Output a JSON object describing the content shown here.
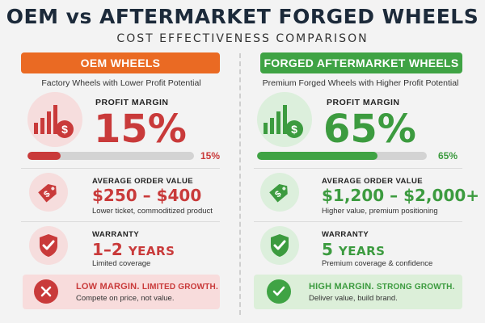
{
  "header": {
    "title": "OEM vs AFTERMARKET FORGED WHEELS",
    "subtitle": "COST EFFECTIVENESS COMPARISON"
  },
  "colors": {
    "oem": "#c93a3a",
    "oem_header": "#ea6a23",
    "aftermarket": "#3fa344"
  },
  "oem": {
    "header_label": "OEM WHEELS",
    "description": "Factory Wheels with Lower Profit Potential",
    "profit_margin": {
      "label": "PROFIT MARGIN",
      "value": "15%",
      "bar_label": "15%",
      "bar_fraction": 0.2,
      "icon": "bar-chart-dollar-icon"
    },
    "average_order": {
      "label": "AVERAGE ORDER VALUE",
      "value": "$250 – $400",
      "description": "Lower ticket, commoditized product",
      "icon": "price-tag-icon"
    },
    "warranty": {
      "label": "WARRANTY",
      "value_number": "1–2",
      "value_unit": "YEARS",
      "description": "Limited coverage",
      "icon": "shield-check-icon"
    },
    "summary": {
      "title_main": "LOW MARGIN.",
      "title_sub": "LIMITED GROWTH.",
      "description": "Compete on price, not value.",
      "icon": "x-circle-icon"
    }
  },
  "aftermarket": {
    "header_label": "FORGED AFTERMARKET WHEELS",
    "description": "Premium Forged Wheels with Higher Profit Potential",
    "profit_margin": {
      "label": "PROFIT MARGIN",
      "value": "65%",
      "bar_label": "65%",
      "bar_fraction": 0.71,
      "icon": "bar-chart-dollar-icon"
    },
    "average_order": {
      "label": "AVERAGE ORDER VALUE",
      "value": "$1,200 – $2,000+",
      "description": "Higher value, premium positioning",
      "icon": "price-tag-icon"
    },
    "warranty": {
      "label": "WARRANTY",
      "value_number": "5",
      "value_unit": "YEARS",
      "description": "Premium coverage & confidence",
      "icon": "shield-check-icon"
    },
    "summary": {
      "title_main": "HIGH MARGIN.",
      "title_sub": "STRONG GROWTH.",
      "description": "Deliver value, build brand.",
      "icon": "check-circle-icon"
    }
  }
}
